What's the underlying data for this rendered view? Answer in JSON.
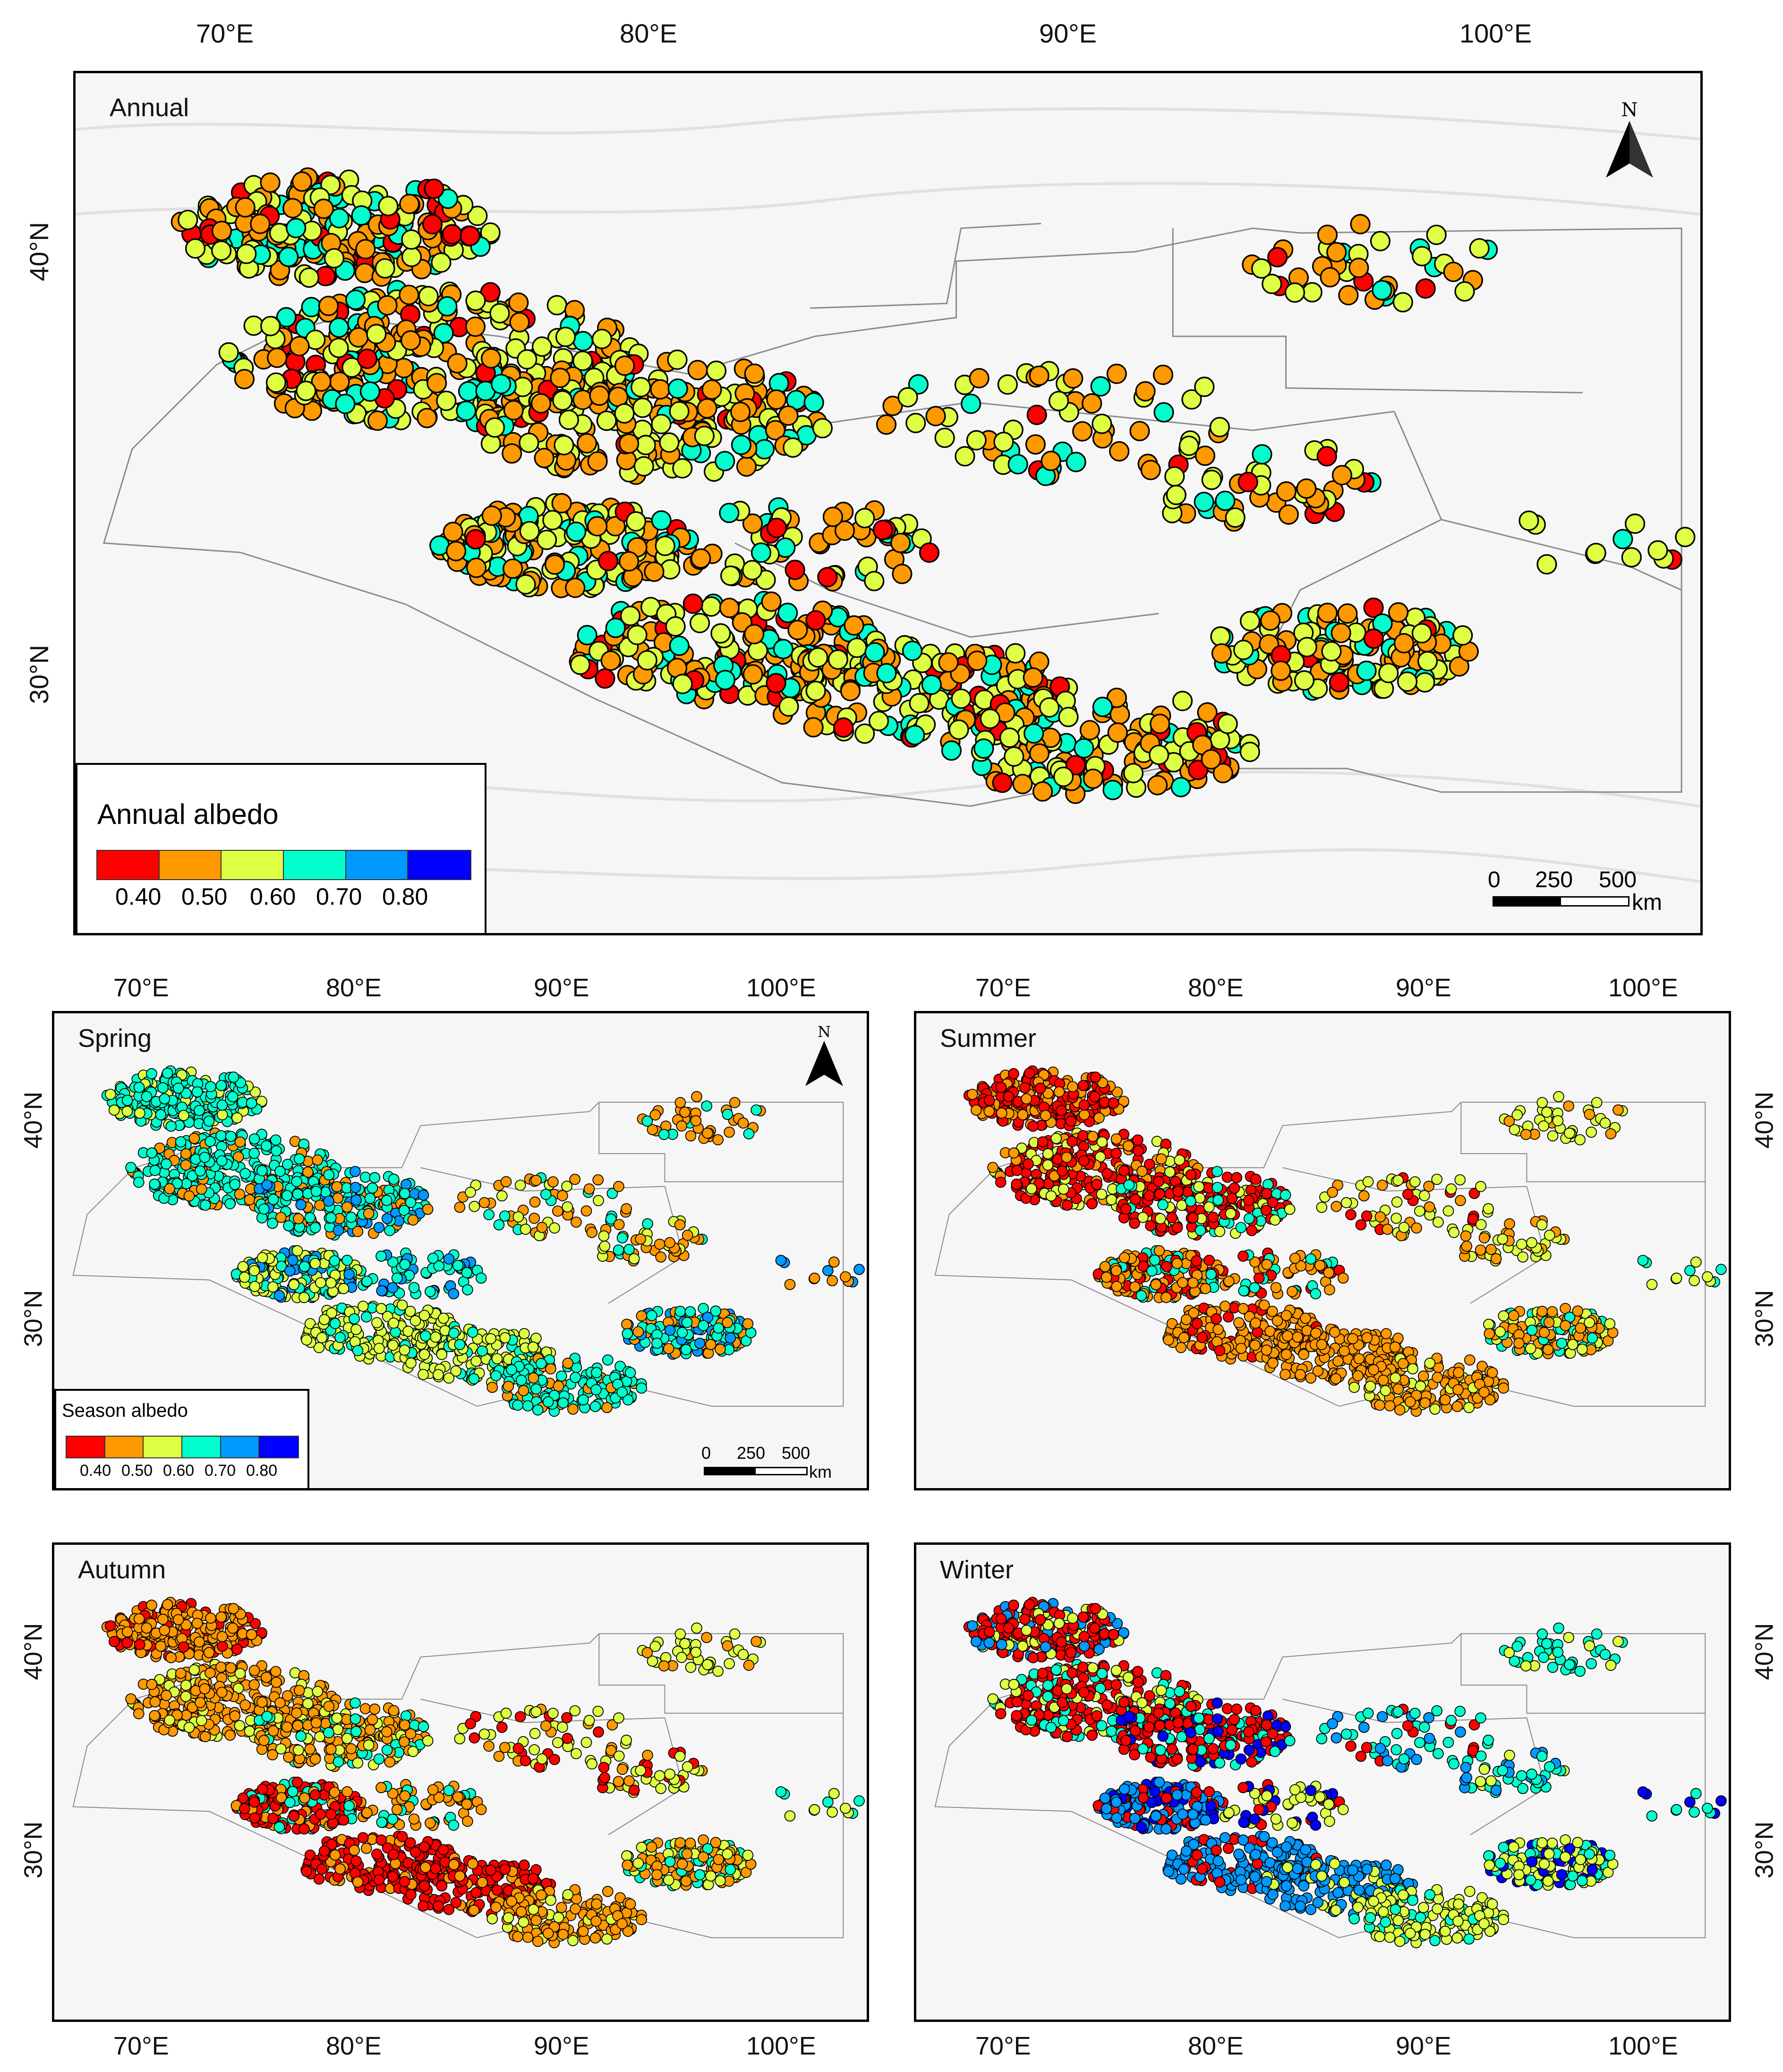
{
  "colors": {
    "classes": [
      "#ff0000",
      "#ff9900",
      "#ddff44",
      "#00ffcc",
      "#0099ff",
      "#0000ff"
    ],
    "outline": "#000000",
    "boundary": "#7a7a7a"
  },
  "lon_labels": [
    "70°E",
    "80°E",
    "90°E",
    "100°E"
  ],
  "lat_labels": [
    "40°N",
    "30°N"
  ],
  "annual": {
    "title": "Annual",
    "legend": {
      "title": "Annual albedo",
      "ticks": [
        "0.40",
        "0.50",
        "0.60",
        "0.70",
        "0.80"
      ]
    },
    "north": "N",
    "scale": {
      "labels": [
        "0",
        "250",
        "500"
      ],
      "unit": "km"
    }
  },
  "seasons": [
    {
      "title": "Spring",
      "dominant": [
        3,
        2,
        3,
        1,
        4
      ]
    },
    {
      "title": "Summer",
      "dominant": [
        0,
        1,
        1,
        2,
        3
      ]
    },
    {
      "title": "Autumn",
      "dominant": [
        1,
        0,
        1,
        2,
        3
      ]
    },
    {
      "title": "Winter",
      "dominant": [
        0,
        4,
        2,
        3,
        5
      ]
    }
  ],
  "season_legend": {
    "title": "Season albedo",
    "ticks": [
      "0.40",
      "0.50",
      "0.60",
      "0.70",
      "0.80"
    ]
  },
  "season_north": "N",
  "season_scale": {
    "labels": [
      "0",
      "250",
      "500"
    ],
    "unit": "km"
  }
}
